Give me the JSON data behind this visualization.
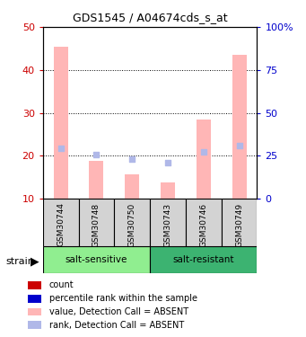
{
  "title": "GDS1545 / A04674cds_s_at",
  "samples": [
    "GSM30744",
    "GSM30748",
    "GSM30750",
    "GSM30743",
    "GSM30746",
    "GSM30749"
  ],
  "bar_values": [
    45.5,
    18.8,
    15.8,
    13.8,
    28.5,
    43.5
  ],
  "bar_color": "#ffb6b6",
  "dot_values": [
    29.5,
    25.5,
    23.2,
    21.0,
    27.5,
    31.0
  ],
  "dot_color": "#b0b8e8",
  "ylim_left": [
    10,
    50
  ],
  "ylim_right": [
    0,
    100
  ],
  "yticks_left": [
    10,
    20,
    30,
    40,
    50
  ],
  "ytick_labels_right": [
    "0",
    "25",
    "50",
    "75",
    "100%"
  ],
  "yticks_right": [
    0,
    25,
    50,
    75,
    100
  ],
  "left_tick_color": "#cc0000",
  "right_tick_color": "#0000cc",
  "background_color": "#ffffff",
  "bar_bottom": 10,
  "group1_color": "#90ee90",
  "group2_color": "#3cb371",
  "sample_bg": "#d3d3d3",
  "legend_items": [
    {
      "color": "#cc0000",
      "label": "count"
    },
    {
      "color": "#0000cc",
      "label": "percentile rank within the sample"
    },
    {
      "color": "#ffb6b6",
      "label": "value, Detection Call = ABSENT"
    },
    {
      "color": "#b0b8e8",
      "label": "rank, Detection Call = ABSENT"
    }
  ]
}
